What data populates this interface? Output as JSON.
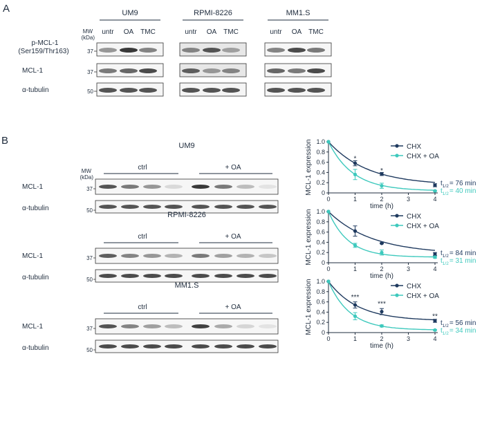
{
  "panel_a": {
    "label": "A",
    "mw_label": "MW",
    "kda_label": "(kDa)",
    "cell_lines": [
      "UM9",
      "RPMI-8226",
      "MM1.S"
    ],
    "lanes": [
      "untr",
      "OA",
      "TMC"
    ],
    "rows": [
      {
        "label_lines": [
          "p-MCL-1",
          "(Ser159/Thr163)"
        ],
        "mw": "37",
        "intensity": [
          [
            0.45,
            0.95,
            0.55
          ],
          [
            0.55,
            0.8,
            0.4
          ],
          [
            0.55,
            0.85,
            0.6
          ]
        ],
        "bg": [
          0.12,
          0.35,
          0.1
        ]
      },
      {
        "label_lines": [
          "MCL-1"
        ],
        "mw": "37",
        "intensity": [
          [
            0.6,
            0.7,
            0.85
          ],
          [
            0.75,
            0.45,
            0.55
          ],
          [
            0.7,
            0.6,
            0.85
          ]
        ],
        "bg": [
          0.1,
          0.35,
          0.1
        ]
      },
      {
        "label_lines": [
          "α-tubulin"
        ],
        "mw": "50",
        "intensity": [
          [
            0.8,
            0.8,
            0.8
          ],
          [
            0.8,
            0.8,
            0.8
          ],
          [
            0.8,
            0.8,
            0.8
          ]
        ],
        "bg": [
          0.1,
          0.12,
          0.1
        ]
      }
    ]
  },
  "panel_b": {
    "label": "B",
    "mw_label": "MW",
    "kda_label": "(kDa)",
    "blots": [
      {
        "title": "UM9",
        "group_labels": [
          "ctrl",
          "+ OA"
        ],
        "timepoints": [
          "0",
          "1",
          "2",
          "4",
          "0",
          "1",
          "2",
          "4"
        ],
        "rows": [
          {
            "label": "MCL-1",
            "mw": "37",
            "intensity": [
              0.8,
              0.6,
              0.45,
              0.1,
              0.95,
              0.6,
              0.25,
              0.05
            ]
          },
          {
            "label": "α-tubulin",
            "mw": "50",
            "intensity": [
              0.8,
              0.8,
              0.8,
              0.8,
              0.8,
              0.8,
              0.8,
              0.8
            ]
          }
        ]
      },
      {
        "title": "RPMI-8226",
        "group_labels": [
          "ctrl",
          "+ OA"
        ],
        "timepoints": [
          "0",
          "1",
          "2",
          "4",
          "0",
          "1",
          "2",
          "4"
        ],
        "rows": [
          {
            "label": "MCL-1",
            "mw": "37",
            "intensity": [
              0.75,
              0.55,
              0.45,
              0.3,
              0.6,
              0.4,
              0.3,
              0.2
            ]
          },
          {
            "label": "α-tubulin",
            "mw": "50",
            "intensity": [
              0.85,
              0.85,
              0.85,
              0.85,
              0.85,
              0.85,
              0.85,
              0.85
            ]
          }
        ]
      },
      {
        "title": "MM1.S",
        "group_labels": [
          "ctrl",
          "+ OA"
        ],
        "timepoints": [
          "0",
          "1",
          "2",
          "4",
          "0",
          "1",
          "2",
          "4"
        ],
        "rows": [
          {
            "label": "MCL-1",
            "mw": "37",
            "intensity": [
              0.8,
              0.55,
              0.4,
              0.25,
              0.9,
              0.35,
              0.12,
              0.05
            ]
          },
          {
            "label": "α-tubulin",
            "mw": "50",
            "intensity": [
              0.85,
              0.85,
              0.85,
              0.85,
              0.85,
              0.85,
              0.85,
              0.85
            ]
          }
        ]
      }
    ]
  },
  "colors": {
    "chx": "#1f3a5f",
    "chx_oa": "#3ec9bd",
    "axis": "#1e2b3c"
  },
  "chart_data": [
    {
      "type": "line",
      "title": "",
      "xlabel": "time (h)",
      "ylabel": "MCL-1 expression",
      "xlim": [
        0,
        4
      ],
      "ylim": [
        0,
        1.0
      ],
      "xticks": [
        "0",
        "1",
        "2",
        "3",
        "4"
      ],
      "yticks": [
        "0",
        "0.2",
        "0.4",
        "0.6",
        "0.8",
        "1.0"
      ],
      "legend_position": "top-right",
      "series": [
        {
          "name": "CHX",
          "x": [
            0,
            1,
            2,
            4
          ],
          "y": [
            1.0,
            0.58,
            0.37,
            0.15
          ],
          "error": [
            0,
            0.05,
            0.03,
            0.03
          ],
          "halflife_text": "= 76 min"
        },
        {
          "name": "CHX + OA",
          "x": [
            0,
            1,
            2,
            4
          ],
          "y": [
            1.0,
            0.36,
            0.14,
            0.04
          ],
          "error": [
            0,
            0.1,
            0.05,
            0.01
          ],
          "halflife_text": "= 40 min"
        }
      ],
      "significance": [
        {
          "x": 1,
          "y": 0.67,
          "text": "*"
        },
        {
          "x": 2,
          "y": 0.43,
          "text": "*"
        }
      ]
    },
    {
      "type": "line",
      "title": "",
      "xlabel": "time (h)",
      "ylabel": "MCL-1 expression",
      "xlim": [
        0,
        4
      ],
      "ylim": [
        0,
        1.0
      ],
      "xticks": [
        "0",
        "1",
        "2",
        "3",
        "4"
      ],
      "yticks": [
        "0",
        "0.2",
        "0.4",
        "0.6",
        "0.8",
        "1.0"
      ],
      "legend_position": "top-right",
      "series": [
        {
          "name": "CHX",
          "x": [
            0,
            1,
            2,
            4
          ],
          "y": [
            1.0,
            0.62,
            0.38,
            0.17
          ],
          "error": [
            0,
            0.1,
            0.01,
            0.03
          ],
          "halflife_text": "= 84 min"
        },
        {
          "name": "CHX + OA",
          "x": [
            0,
            1,
            2,
            4
          ],
          "y": [
            1.0,
            0.34,
            0.2,
            0.11
          ],
          "error": [
            0,
            0.04,
            0.05,
            0.02
          ],
          "halflife_text": "= 31 min"
        }
      ],
      "significance": []
    },
    {
      "type": "line",
      "title": "",
      "xlabel": "time (h)",
      "ylabel": "MCL-1 expression",
      "xlim": [
        0,
        4
      ],
      "ylim": [
        0,
        1.0
      ],
      "xticks": [
        "0",
        "1",
        "2",
        "3",
        "4"
      ],
      "yticks": [
        "0",
        "0.2",
        "0.4",
        "0.6",
        "0.8",
        "1.0"
      ],
      "legend_position": "top-right",
      "series": [
        {
          "name": "CHX",
          "x": [
            0,
            1,
            2,
            4
          ],
          "y": [
            1.0,
            0.54,
            0.41,
            0.23
          ],
          "error": [
            0,
            0.06,
            0.06,
            0.03
          ],
          "halflife_text": "= 56 min"
        },
        {
          "name": "CHX + OA",
          "x": [
            0,
            1,
            2,
            4
          ],
          "y": [
            1.0,
            0.32,
            0.13,
            0.05
          ],
          "error": [
            0,
            0.07,
            0.02,
            0.01
          ],
          "halflife_text": "= 34 min"
        }
      ],
      "significance": [
        {
          "x": 1,
          "y": 0.69,
          "text": "***"
        },
        {
          "x": 2,
          "y": 0.56,
          "text": "***"
        },
        {
          "x": 4,
          "y": 0.32,
          "text": "**"
        }
      ]
    }
  ]
}
